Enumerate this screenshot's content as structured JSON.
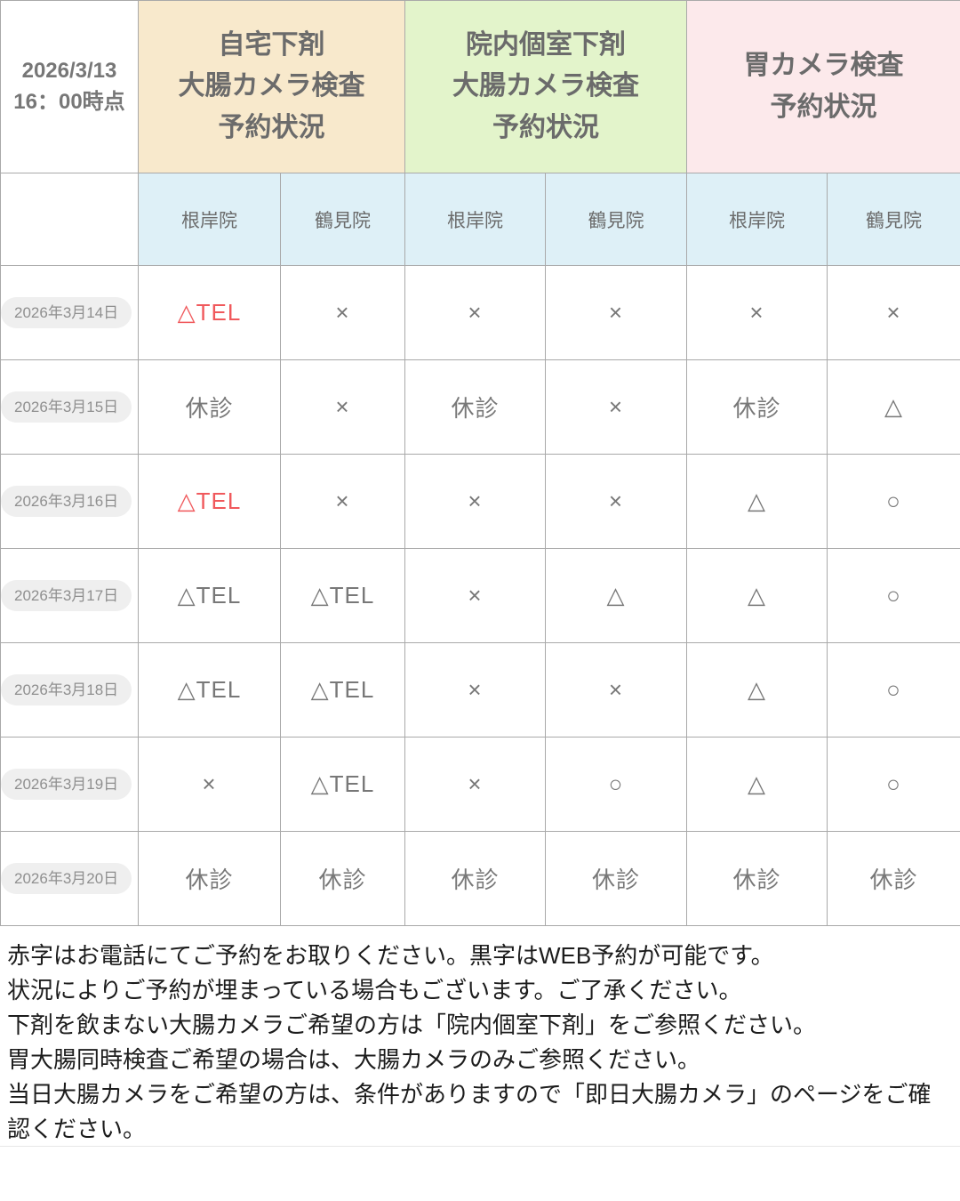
{
  "meta": {
    "as_of": "2026/3/13\n16：00時点"
  },
  "table": {
    "groups": [
      {
        "label": "自宅下剤\n大腸カメラ検査\n予約状況",
        "bg": "#f8e9cc"
      },
      {
        "label": "院内個室下剤\n大腸カメラ検査\n予約状況",
        "bg": "#e3f4cb"
      },
      {
        "label": "胃カメラ検査\n予約状況",
        "bg": "#fce9eb"
      }
    ],
    "clinic_headers": [
      "根岸院",
      "鶴見院",
      "根岸院",
      "鶴見院",
      "根岸院",
      "鶴見院"
    ],
    "rows": [
      {
        "date": "2026年3月14日",
        "cells": [
          {
            "t": "△TEL",
            "red": true
          },
          {
            "t": "×"
          },
          {
            "t": "×"
          },
          {
            "t": "×"
          },
          {
            "t": "×"
          },
          {
            "t": "×"
          }
        ]
      },
      {
        "date": "2026年3月15日",
        "cells": [
          {
            "t": "休診"
          },
          {
            "t": "×"
          },
          {
            "t": "休診"
          },
          {
            "t": "×"
          },
          {
            "t": "休診"
          },
          {
            "t": "△"
          }
        ]
      },
      {
        "date": "2026年3月16日",
        "cells": [
          {
            "t": "△TEL",
            "red": true
          },
          {
            "t": "×"
          },
          {
            "t": "×"
          },
          {
            "t": "×"
          },
          {
            "t": "△"
          },
          {
            "t": "○"
          }
        ]
      },
      {
        "date": "2026年3月17日",
        "cells": [
          {
            "t": "△TEL"
          },
          {
            "t": "△TEL"
          },
          {
            "t": "×"
          },
          {
            "t": "△"
          },
          {
            "t": "△"
          },
          {
            "t": "○"
          }
        ]
      },
      {
        "date": "2026年3月18日",
        "cells": [
          {
            "t": "△TEL"
          },
          {
            "t": "△TEL"
          },
          {
            "t": "×"
          },
          {
            "t": "×"
          },
          {
            "t": "△"
          },
          {
            "t": "○"
          }
        ]
      },
      {
        "date": "2026年3月19日",
        "cells": [
          {
            "t": "×"
          },
          {
            "t": "△TEL"
          },
          {
            "t": "×"
          },
          {
            "t": "○"
          },
          {
            "t": "△"
          },
          {
            "t": "○"
          }
        ]
      },
      {
        "date": "2026年3月20日",
        "cells": [
          {
            "t": "休診"
          },
          {
            "t": "休診"
          },
          {
            "t": "休診"
          },
          {
            "t": "休診"
          },
          {
            "t": "休診"
          },
          {
            "t": "休診"
          }
        ]
      }
    ]
  },
  "notes": [
    "赤字はお電話にてご予約をお取りください。黒字はWEB予約が可能です。",
    "状況によりご予約が埋まっている場合もございます。ご了承ください。",
    "下剤を飲まない大腸カメラご希望の方は「院内個室下剤」をご参照ください。",
    "胃大腸同時検査ご希望の場合は、大腸カメラのみご参照ください。",
    "当日大腸カメラをご希望の方は、条件がありますので「即日大腸カメラ」のページをご確認ください。"
  ],
  "colors": {
    "group_home_bg": "#f8e9cc",
    "group_inhouse_bg": "#e3f4cb",
    "group_gastro_bg": "#fce9eb",
    "clinic_header_bg": "#def0f7",
    "border": "#a9a9a9",
    "tel_red": "#f0595c",
    "cell_text": "#787878",
    "date_pill_bg": "#efefef",
    "date_pill_text": "#8f8f8f"
  }
}
